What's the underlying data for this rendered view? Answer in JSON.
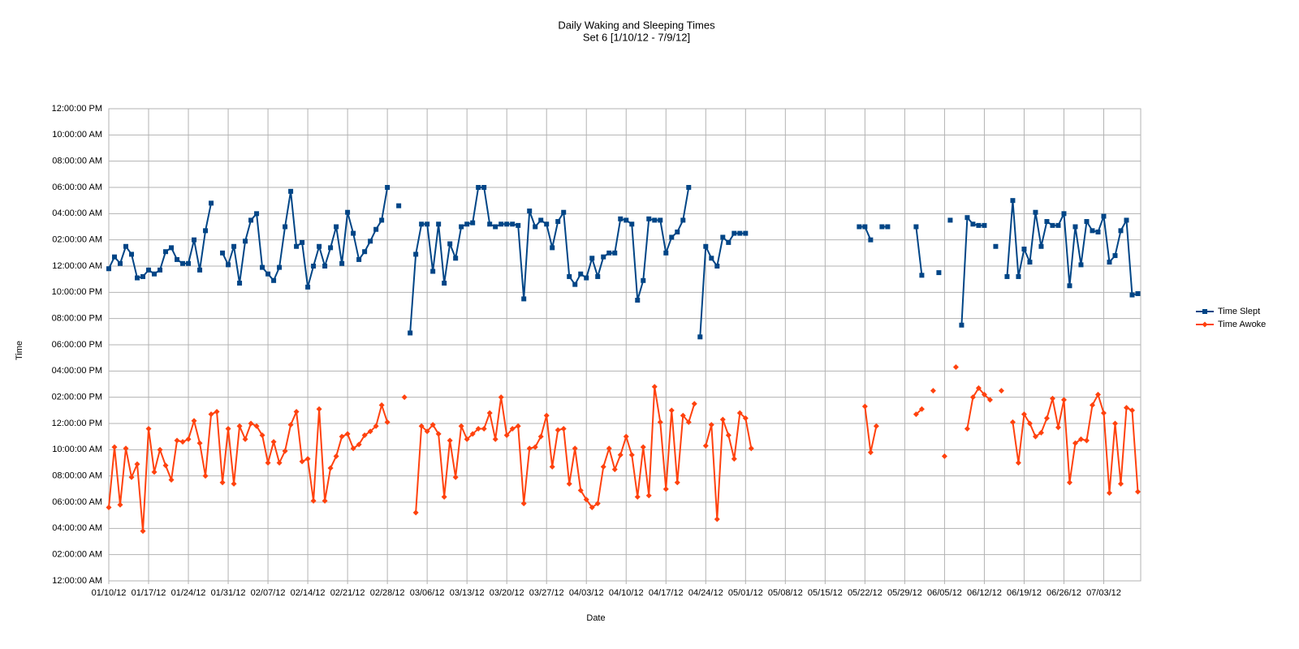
{
  "chart_data": {
    "type": "line",
    "title": "Daily Waking and Sleeping Times",
    "subtitle": "Set 6 [1/10/12 - 7/9/12]",
    "x_label": "Date",
    "y_label": "Time",
    "categories": [
      "01/10/12",
      null,
      null,
      null,
      null,
      null,
      null,
      "01/17/12",
      null,
      null,
      null,
      null,
      null,
      null,
      "01/24/12",
      null,
      null,
      null,
      null,
      null,
      null,
      "01/31/12",
      null,
      null,
      null,
      null,
      null,
      null,
      "02/07/12",
      null,
      null,
      null,
      null,
      null,
      null,
      "02/14/12",
      null,
      null,
      null,
      null,
      null,
      null,
      "02/21/12",
      null,
      null,
      null,
      null,
      null,
      null,
      "02/28/12",
      null,
      null,
      null,
      null,
      null,
      null,
      "03/06/12",
      null,
      null,
      null,
      null,
      null,
      null,
      "03/13/12",
      null,
      null,
      null,
      null,
      null,
      null,
      "03/20/12",
      null,
      null,
      null,
      null,
      null,
      null,
      "03/27/12",
      null,
      null,
      null,
      null,
      null,
      null,
      "04/03/12",
      null,
      null,
      null,
      null,
      null,
      null,
      "04/10/12",
      null,
      null,
      null,
      null,
      null,
      null,
      "04/17/12",
      null,
      null,
      null,
      null,
      null,
      null,
      "04/24/12",
      null,
      null,
      null,
      null,
      null,
      null,
      "05/01/12",
      null,
      null,
      null,
      null,
      null,
      null,
      "05/08/12",
      null,
      null,
      null,
      null,
      null,
      null,
      "05/15/12",
      null,
      null,
      null,
      null,
      null,
      null,
      "05/22/12",
      null,
      null,
      null,
      null,
      null,
      null,
      "05/29/12",
      null,
      null,
      null,
      null,
      null,
      null,
      "06/05/12",
      null,
      null,
      null,
      null,
      null,
      null,
      "06/12/12",
      null,
      null,
      null,
      null,
      null,
      null,
      "06/19/12",
      null,
      null,
      null,
      null,
      null,
      null,
      "06/26/12",
      null,
      null,
      null,
      null,
      null,
      null,
      "07/03/12",
      null,
      null,
      null,
      null,
      null,
      null
    ],
    "series": [
      {
        "name": "Time Slept",
        "color": "#004586",
        "marker": "square",
        "values": [
          23.8,
          24.7,
          24.2,
          25.5,
          24.9,
          23.1,
          23.2,
          23.7,
          23.4,
          23.7,
          25.1,
          25.4,
          24.5,
          24.2,
          24.2,
          26.0,
          23.7,
          26.7,
          28.8,
          null,
          25.0,
          24.1,
          25.5,
          22.7,
          25.9,
          27.5,
          28.0,
          23.9,
          23.4,
          22.9,
          23.9,
          27.0,
          29.7,
          25.5,
          25.8,
          22.4,
          24.0,
          25.5,
          24.0,
          25.4,
          27.0,
          24.2,
          28.1,
          26.5,
          24.5,
          25.1,
          25.9,
          26.8,
          27.5,
          30.0,
          null,
          28.6,
          null,
          18.9,
          24.9,
          27.2,
          27.2,
          23.6,
          27.2,
          22.7,
          25.7,
          24.6,
          27.0,
          27.2,
          27.3,
          30.0,
          30.0,
          27.2,
          27.0,
          27.2,
          27.2,
          27.2,
          27.1,
          21.5,
          28.2,
          27.0,
          27.5,
          27.2,
          25.4,
          27.4,
          28.1,
          23.2,
          22.6,
          23.4,
          23.1,
          24.6,
          23.2,
          24.7,
          25.0,
          25.0,
          27.6,
          27.5,
          27.2,
          21.4,
          22.9,
          27.6,
          27.5,
          27.5,
          25.0,
          26.2,
          26.6,
          27.5,
          30.0,
          null,
          18.6,
          25.5,
          24.6,
          24.0,
          26.2,
          25.8,
          26.5,
          26.5,
          26.5,
          null,
          null,
          null,
          null,
          null,
          null,
          null,
          null,
          null,
          null,
          null,
          null,
          null,
          null,
          null,
          null,
          null,
          null,
          null,
          27.0,
          27.0,
          26.0,
          null,
          27.0,
          27.0,
          null,
          null,
          null,
          null,
          27.0,
          23.3,
          null,
          null,
          23.5,
          null,
          27.5,
          null,
          19.5,
          27.7,
          27.2,
          27.1,
          27.1,
          null,
          25.5,
          null,
          23.2,
          29.0,
          23.2,
          25.3,
          24.3,
          28.1,
          25.5,
          27.4,
          27.1,
          27.1,
          28.0,
          22.5,
          27.0,
          24.1,
          27.4,
          26.7,
          26.6,
          27.8,
          24.3,
          24.8,
          26.7,
          27.5,
          21.8,
          21.9
        ]
      },
      {
        "name": "Time Awoke",
        "color": "#ff420e",
        "marker": "diamond",
        "values": [
          5.6,
          10.2,
          5.8,
          10.1,
          7.9,
          8.9,
          3.8,
          11.6,
          8.3,
          10.0,
          8.8,
          7.7,
          10.7,
          10.6,
          10.8,
          12.2,
          10.5,
          8.0,
          12.7,
          12.9,
          7.5,
          11.6,
          7.4,
          11.8,
          10.8,
          12.0,
          11.8,
          11.1,
          9.0,
          10.6,
          9.0,
          9.9,
          11.9,
          12.9,
          9.1,
          9.3,
          6.1,
          13.1,
          6.1,
          8.6,
          9.5,
          11.0,
          11.2,
          10.1,
          10.4,
          11.1,
          11.4,
          11.8,
          13.4,
          12.1,
          null,
          null,
          14.0,
          null,
          5.2,
          11.8,
          11.4,
          11.9,
          11.2,
          6.4,
          10.7,
          7.9,
          11.8,
          10.8,
          11.2,
          11.6,
          11.6,
          12.8,
          10.8,
          14.0,
          11.1,
          11.6,
          11.8,
          5.9,
          10.1,
          10.2,
          11.0,
          12.6,
          8.7,
          11.5,
          11.6,
          7.4,
          10.1,
          6.9,
          6.2,
          5.6,
          5.9,
          8.7,
          10.1,
          8.5,
          9.6,
          11.0,
          9.6,
          6.4,
          10.2,
          6.5,
          14.8,
          12.1,
          7.0,
          13.0,
          7.5,
          12.6,
          12.1,
          13.5,
          null,
          10.3,
          11.9,
          4.7,
          12.3,
          11.1,
          9.3,
          12.8,
          12.4,
          10.1,
          null,
          null,
          null,
          null,
          null,
          null,
          null,
          null,
          null,
          null,
          null,
          null,
          null,
          null,
          null,
          null,
          null,
          null,
          null,
          13.3,
          9.8,
          11.8,
          null,
          null,
          null,
          null,
          null,
          null,
          12.7,
          13.1,
          null,
          14.5,
          null,
          9.5,
          null,
          16.3,
          null,
          11.6,
          14.0,
          14.7,
          14.2,
          13.8,
          null,
          14.5,
          null,
          12.1,
          9.0,
          12.7,
          12.0,
          11.0,
          11.3,
          12.4,
          13.9,
          11.7,
          13.8,
          7.5,
          10.5,
          10.8,
          10.7,
          13.4,
          14.2,
          12.8,
          6.7,
          12.0,
          7.4,
          13.2,
          13.0,
          6.8
        ]
      }
    ],
    "ylim": [
      0,
      36
    ],
    "yticks": [
      {
        "value": 0,
        "label": "12:00:00 AM"
      },
      {
        "value": 2,
        "label": "02:00:00 AM"
      },
      {
        "value": 4,
        "label": "04:00:00 AM"
      },
      {
        "value": 6,
        "label": "06:00:00 AM"
      },
      {
        "value": 8,
        "label": "08:00:00 AM"
      },
      {
        "value": 10,
        "label": "10:00:00 AM"
      },
      {
        "value": 12,
        "label": "12:00:00 PM"
      },
      {
        "value": 14,
        "label": "02:00:00 PM"
      },
      {
        "value": 16,
        "label": "04:00:00 PM"
      },
      {
        "value": 18,
        "label": "06:00:00 PM"
      },
      {
        "value": 20,
        "label": "08:00:00 PM"
      },
      {
        "value": 22,
        "label": "10:00:00 PM"
      },
      {
        "value": 24,
        "label": "12:00:00 AM"
      },
      {
        "value": 26,
        "label": "02:00:00 AM"
      },
      {
        "value": 28,
        "label": "04:00:00 AM"
      },
      {
        "value": 30,
        "label": "06:00:00 AM"
      },
      {
        "value": 32,
        "label": "08:00:00 AM"
      },
      {
        "value": 34,
        "label": "10:00:00 AM"
      },
      {
        "value": 36,
        "label": "12:00:00 PM"
      }
    ],
    "grid": true,
    "legend": "right"
  }
}
